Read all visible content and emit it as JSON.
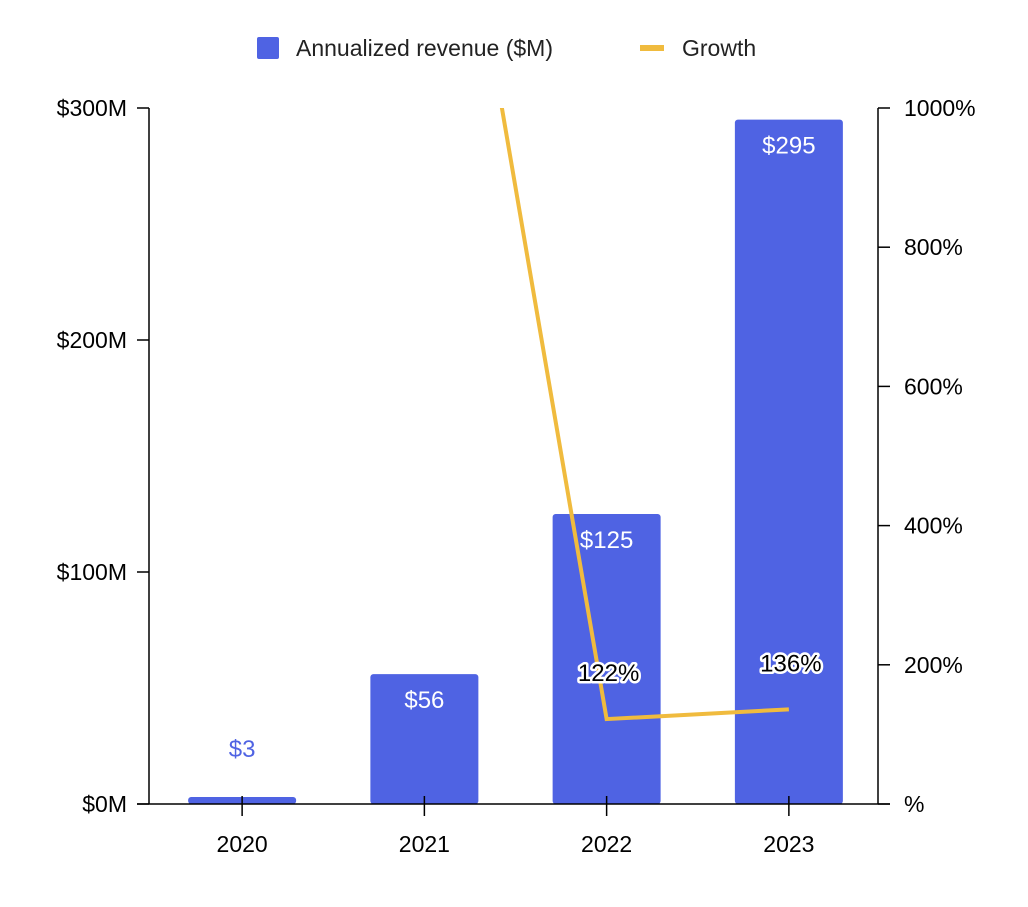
{
  "chart_data": {
    "type": "bar",
    "title": "",
    "categories": [
      "2020",
      "2021",
      "2022",
      "2023"
    ],
    "series": [
      {
        "name": "Annualized revenue ($M)",
        "type": "bar",
        "axis": "left",
        "values": [
          3,
          56,
          125,
          295
        ],
        "labels": [
          "$3",
          "$56",
          "$125",
          "$295"
        ],
        "color": "#4f63e3"
      },
      {
        "name": "Growth",
        "type": "line",
        "axis": "right",
        "values": [
          null,
          1650,
          122,
          136
        ],
        "labels": [
          "",
          "",
          "122%",
          "136%"
        ],
        "color": "#f0bb3e"
      }
    ],
    "left_axis": {
      "ylim": [
        0,
        300
      ],
      "ticks": [
        0,
        100,
        200,
        300
      ],
      "tick_labels": [
        "$0M",
        "$100M",
        "$200M",
        "$300M"
      ]
    },
    "right_axis": {
      "ylim": [
        0,
        1000
      ],
      "ticks": [
        0,
        200,
        400,
        600,
        800,
        1000
      ],
      "tick_labels": [
        "%",
        "200%",
        "400%",
        "600%",
        "800%",
        "1000%"
      ]
    },
    "legend": "top-center",
    "grid": false
  }
}
